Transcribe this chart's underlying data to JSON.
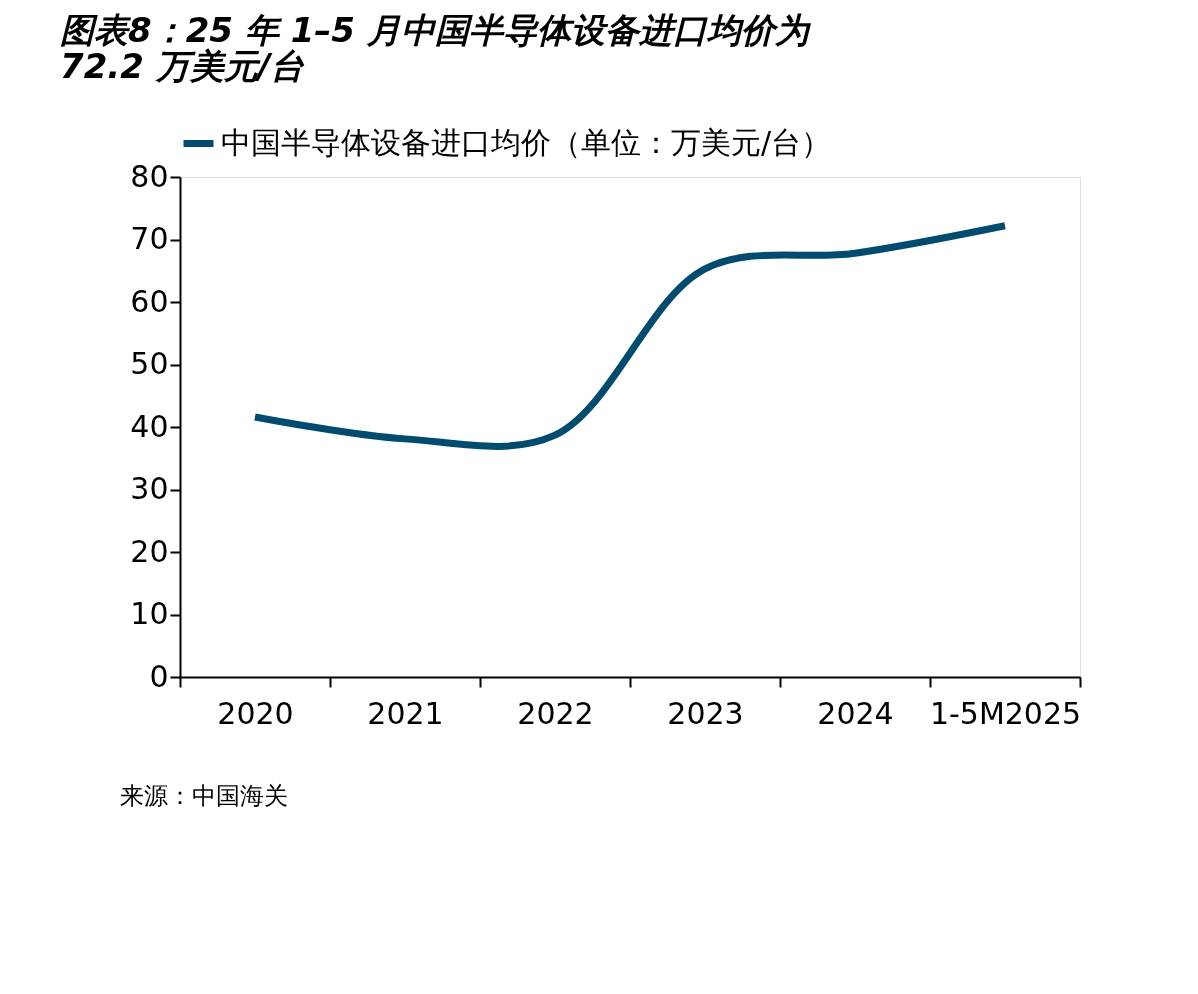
{
  "chart_data": {
    "type": "line",
    "title": "图表8：25 年 1–5 月中国半导体设备进口均价为 72.2 万美元/台",
    "categories": [
      "2020",
      "2021",
      "2022",
      "2023",
      "2024",
      "1-5M2025"
    ],
    "series": [
      {
        "name": "中国半导体设备进口均价（单位：万美元/台）",
        "color": "#004b6e",
        "values": [
          41.6,
          38.1,
          38.7,
          65.3,
          67.8,
          72.2
        ]
      }
    ],
    "ylim": [
      0,
      80
    ],
    "yticks": [
      0,
      10,
      20,
      30,
      40,
      50,
      60,
      70,
      80
    ],
    "grid": false,
    "legend": "top",
    "marker": "none",
    "line_style": "solid",
    "annotations": [
      "来源：中国海关"
    ]
  }
}
